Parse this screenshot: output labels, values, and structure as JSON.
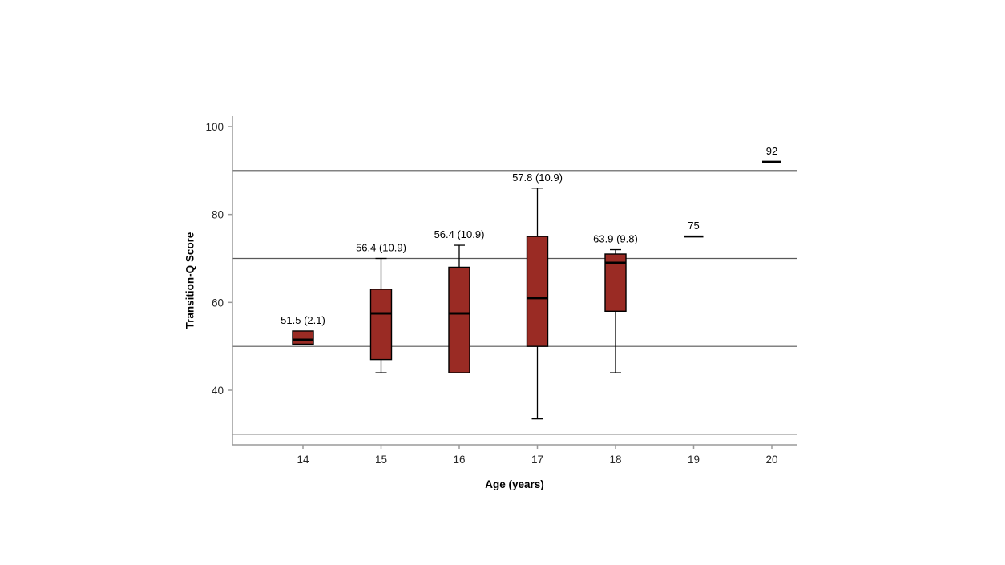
{
  "chart_data": {
    "type": "boxplot",
    "title": "",
    "xlabel": "Age (years)",
    "ylabel": "Transition-Q Score",
    "ylim": [
      28,
      103
    ],
    "yticks": [
      100,
      80,
      60,
      40
    ],
    "gridlines": [
      90,
      70,
      50,
      30
    ],
    "legend": "none",
    "grid": "horizontal-only",
    "categories": [
      "14",
      "15",
      "16",
      "17",
      "18",
      "19",
      "20"
    ],
    "boxes": [
      {
        "age": "14",
        "label": "51.5 (2.1)",
        "q1": 50.5,
        "median": 51.5,
        "q3": 53.5,
        "whisker_low": null,
        "whisker_high": null,
        "value": null
      },
      {
        "age": "15",
        "label": "56.4 (10.9)",
        "q1": 47,
        "median": 57.5,
        "q3": 63,
        "whisker_low": 44,
        "whisker_high": 70,
        "value": null
      },
      {
        "age": "16",
        "label": "56.4 (10.9)",
        "q1": 44,
        "median": 57.5,
        "q3": 68,
        "whisker_low": null,
        "whisker_high": 73,
        "value": null
      },
      {
        "age": "17",
        "label": "57.8 (10.9)",
        "q1": 50,
        "median": 61,
        "q3": 75,
        "whisker_low": 33.5,
        "whisker_high": 86,
        "value": null
      },
      {
        "age": "18",
        "label": "63.9 (9.8)",
        "q1": 58,
        "median": 69,
        "q3": 71,
        "whisker_low": 44,
        "whisker_high": 72,
        "value": null
      },
      {
        "age": "19",
        "label": "75",
        "q1": null,
        "median": null,
        "q3": null,
        "whisker_low": null,
        "whisker_high": null,
        "value": 75
      },
      {
        "age": "20",
        "label": "92",
        "q1": null,
        "median": null,
        "q3": null,
        "whisker_low": null,
        "whisker_high": null,
        "value": 92
      }
    ],
    "colors": {
      "box_fill": "#9a2b24",
      "box_stroke": "#000000",
      "median": "#000000",
      "whisker": "#000000",
      "grid": "#595959",
      "axis": "#9a9a9a",
      "tick_text": "#262626",
      "label_text": "#000000"
    }
  }
}
